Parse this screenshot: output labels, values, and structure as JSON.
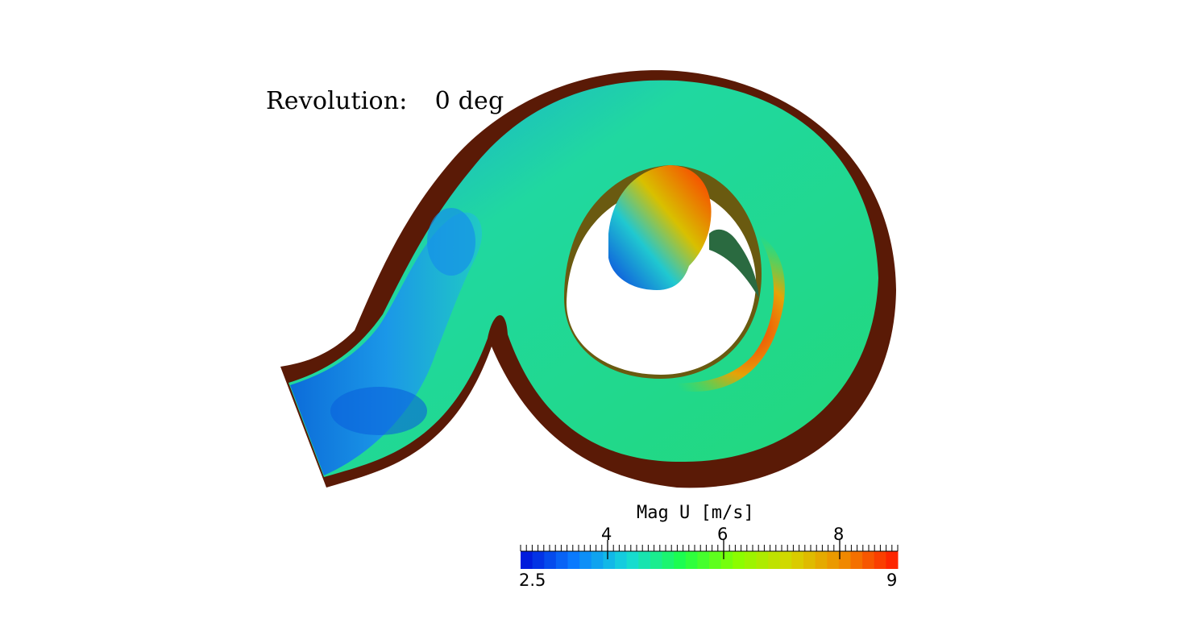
{
  "annotation": {
    "label": "Revolution:",
    "value": "0 deg"
  },
  "colorbar": {
    "title": "Mag U [m/s]",
    "min": 2.5,
    "max": 9,
    "min_label": "2.5",
    "max_label": "9",
    "tick_labels": [
      {
        "value": 4,
        "text": "4"
      },
      {
        "value": 6,
        "text": "6"
      },
      {
        "value": 8,
        "text": "8"
      }
    ],
    "colors": [
      "#0010d8",
      "#0a7cff",
      "#17d9d9",
      "#1cff4a",
      "#88ff00",
      "#d6d600",
      "#f08a00",
      "#ff1a00"
    ]
  },
  "scene": {
    "wall_color": "#5a1a06",
    "background": "#ffffff"
  }
}
